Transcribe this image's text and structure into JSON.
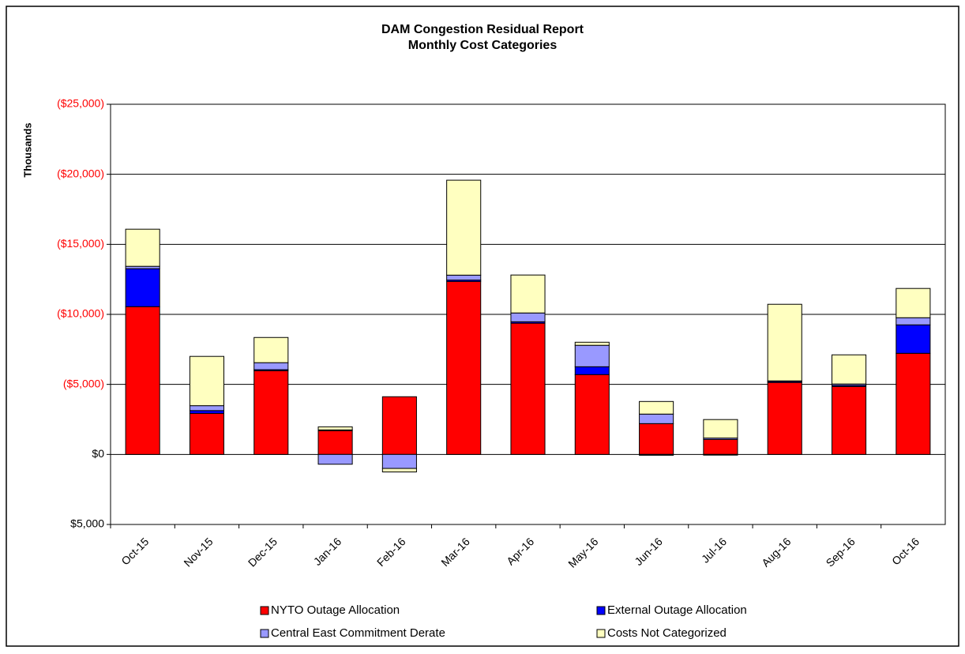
{
  "chart_data": {
    "type": "stacked_bar",
    "title": "DAM Congestion Residual Report",
    "subtitle": "Monthly Cost Categories",
    "y_label": "Thousands",
    "categories": [
      "Oct-15",
      "Nov-15",
      "Dec-15",
      "Jan-16",
      "Feb-16",
      "Mar-16",
      "Apr-16",
      "May-16",
      "Jun-16",
      "Jul-16",
      "Aug-16",
      "Sep-16",
      "Oct-16"
    ],
    "series": [
      {
        "name": "NYTO Outage Allocation",
        "color": "#ff0000",
        "values": [
          -10550,
          -2930,
          -5980,
          -1700,
          -4120,
          -12350,
          -9370,
          -5700,
          -2200,
          -1070,
          -5140,
          -4850,
          -7220
        ]
      },
      {
        "name": "External Outage Allocation",
        "color": "#0000ff",
        "values": [
          -2710,
          -200,
          -70,
          -50,
          0,
          -100,
          -100,
          -560,
          60,
          50,
          -80,
          -80,
          -2030
        ]
      },
      {
        "name": "Central East Commitment Derate",
        "color": "#9999ff",
        "values": [
          -170,
          -350,
          -500,
          700,
          1000,
          -350,
          -630,
          -1530,
          -680,
          -100,
          -30,
          -100,
          -510
        ]
      },
      {
        "name": "Costs Not Categorized",
        "color": "#ffffc0",
        "values": [
          -2650,
          -3520,
          -1800,
          -220,
          250,
          -6780,
          -2710,
          -220,
          -900,
          -1320,
          -5470,
          -2080,
          -2090
        ]
      }
    ],
    "ylim": [
      5000,
      -25000
    ],
    "yticks": [
      {
        "value": -25000,
        "label": "($25,000)"
      },
      {
        "value": -20000,
        "label": "($20,000)"
      },
      {
        "value": -15000,
        "label": "($15,000)"
      },
      {
        "value": -10000,
        "label": "($10,000)"
      },
      {
        "value": -5000,
        "label": "($5,000)"
      },
      {
        "value": 0,
        "label": "$0"
      },
      {
        "value": 5000,
        "label": "$5,000"
      }
    ],
    "grid": true,
    "legend": "bottom"
  }
}
